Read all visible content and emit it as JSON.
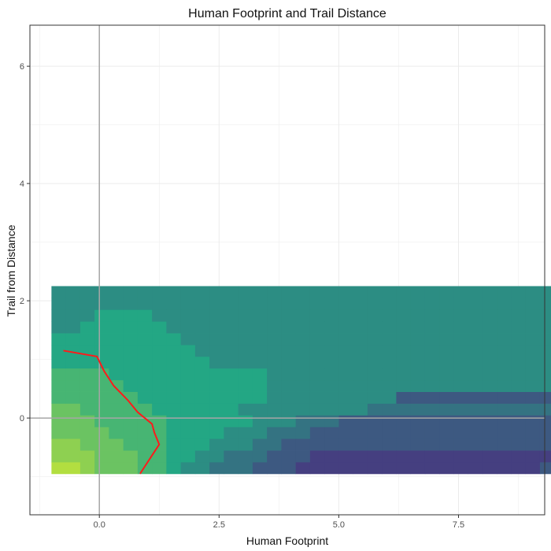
{
  "chart_data": {
    "type": "heatmap",
    "title": "Human Footprint and Trail Distance",
    "xlabel": "Human Footprint",
    "ylabel": "Trail from Distance",
    "xlim": [
      -1.45,
      9.3
    ],
    "ylim": [
      -1.65,
      6.7
    ],
    "x_ticks": [
      0.0,
      2.5,
      5.0,
      7.5
    ],
    "x_tick_labels": [
      "0.0",
      "2.5",
      "5.0",
      "7.5"
    ],
    "y_ticks": [
      0,
      2,
      4,
      6
    ],
    "y_tick_labels": [
      "0",
      "2",
      "4",
      "6"
    ],
    "grid": true,
    "legend": "none",
    "reference_lines": {
      "x": 0,
      "y": 0,
      "color": "#a6a6a6"
    },
    "bin_width": {
      "x": 0.3,
      "y": 0.2
    },
    "x_bin_start": -1.0,
    "y_bin_start": -0.95,
    "colors": {
      "low": "#453f80",
      "mid": "#23a784",
      "high": "#b2de40",
      "trend_line": "#ff1a1a",
      "panel_border": "#333333",
      "grid": "#ebebeb"
    },
    "rows": [
      {
        "y": -0.85,
        "values": [
          8,
          8,
          7,
          6,
          6,
          6,
          5,
          5,
          4,
          3,
          3,
          2,
          2,
          2,
          1,
          1,
          1,
          0,
          0,
          0,
          0,
          0,
          0,
          0,
          0,
          0,
          0,
          0,
          0,
          0,
          0,
          0,
          0,
          0,
          1
        ]
      },
      {
        "y": -0.65,
        "values": [
          7,
          7,
          7,
          6,
          6,
          6,
          5,
          5,
          4,
          4,
          3,
          3,
          2,
          2,
          2,
          1,
          1,
          1,
          0,
          0,
          0,
          0,
          0,
          0,
          0,
          0,
          0,
          0,
          0,
          0,
          0,
          0,
          0,
          0,
          0
        ]
      },
      {
        "y": -0.45,
        "values": [
          7,
          7,
          6,
          6,
          6,
          5,
          5,
          5,
          4,
          4,
          4,
          3,
          3,
          3,
          2,
          2,
          1,
          1,
          1,
          1,
          1,
          1,
          1,
          1,
          1,
          1,
          1,
          1,
          1,
          1,
          1,
          1,
          1,
          1,
          1
        ]
      },
      {
        "y": -0.25,
        "values": [
          6,
          6,
          6,
          6,
          5,
          5,
          5,
          5,
          4,
          4,
          4,
          4,
          3,
          3,
          3,
          2,
          2,
          2,
          1,
          1,
          1,
          1,
          1,
          1,
          1,
          1,
          1,
          1,
          1,
          1,
          1,
          1,
          1,
          1,
          1
        ]
      },
      {
        "y": -0.05,
        "values": [
          6,
          6,
          6,
          5,
          5,
          5,
          5,
          5,
          4,
          4,
          4,
          4,
          4,
          4,
          3,
          3,
          3,
          2,
          2,
          2,
          1,
          1,
          1,
          1,
          1,
          1,
          1,
          1,
          1,
          1,
          1,
          1,
          1,
          1,
          1
        ]
      },
      {
        "y": 0.15,
        "values": [
          6,
          6,
          5,
          5,
          5,
          5,
          5,
          4,
          4,
          4,
          4,
          4,
          4,
          3,
          3,
          3,
          3,
          3,
          3,
          3,
          3,
          3,
          2,
          2,
          2,
          2,
          2,
          2,
          2,
          2,
          2,
          2,
          2,
          2,
          2
        ]
      },
      {
        "y": 0.35,
        "values": [
          5,
          5,
          5,
          5,
          5,
          5,
          4,
          4,
          4,
          4,
          4,
          4,
          4,
          4,
          4,
          3,
          3,
          3,
          3,
          3,
          3,
          3,
          3,
          3,
          1,
          1,
          1,
          1,
          1,
          1,
          1,
          1,
          1,
          1,
          1
        ]
      },
      {
        "y": 0.55,
        "values": [
          5,
          5,
          5,
          5,
          5,
          4,
          4,
          4,
          4,
          4,
          4,
          4,
          4,
          4,
          4,
          3,
          3,
          3,
          3,
          3,
          3,
          3,
          3,
          3,
          3,
          3,
          3,
          3,
          3,
          3,
          3,
          3,
          3,
          3,
          3
        ]
      },
      {
        "y": 0.75,
        "values": [
          5,
          5,
          5,
          5,
          4,
          4,
          4,
          4,
          4,
          4,
          4,
          4,
          4,
          4,
          4,
          3,
          3,
          3,
          3,
          3,
          3,
          3,
          3,
          3,
          3,
          3,
          3,
          3,
          3,
          3,
          3,
          3,
          3,
          3,
          3
        ]
      },
      {
        "y": 0.95,
        "values": [
          4,
          4,
          4,
          4,
          4,
          4,
          4,
          4,
          4,
          4,
          4,
          3,
          3,
          3,
          3,
          3,
          3,
          3,
          3,
          3,
          3,
          3,
          3,
          3,
          3,
          3,
          3,
          3,
          3,
          3,
          3,
          3,
          3,
          3,
          3
        ]
      },
      {
        "y": 1.15,
        "values": [
          4,
          4,
          4,
          4,
          4,
          4,
          4,
          4,
          4,
          4,
          3,
          3,
          3,
          3,
          3,
          3,
          3,
          3,
          3,
          3,
          3,
          3,
          3,
          3,
          3,
          3,
          3,
          3,
          3,
          3,
          3,
          3,
          3,
          3,
          3
        ]
      },
      {
        "y": 1.35,
        "values": [
          4,
          4,
          4,
          4,
          4,
          4,
          4,
          4,
          4,
          3,
          3,
          3,
          3,
          3,
          3,
          3,
          3,
          3,
          3,
          3,
          3,
          3,
          3,
          3,
          3,
          3,
          3,
          3,
          3,
          3,
          3,
          3,
          3,
          3,
          3
        ]
      },
      {
        "y": 1.55,
        "values": [
          3,
          3,
          4,
          4,
          4,
          4,
          4,
          4,
          3,
          3,
          3,
          3,
          3,
          3,
          3,
          3,
          3,
          3,
          3,
          3,
          3,
          3,
          3,
          3,
          3,
          3,
          3,
          3,
          3,
          3,
          3,
          3,
          3,
          3,
          3
        ]
      },
      {
        "y": 1.75,
        "values": [
          3,
          3,
          3,
          4,
          4,
          4,
          4,
          3,
          3,
          3,
          3,
          3,
          3,
          3,
          3,
          3,
          3,
          3,
          3,
          3,
          3,
          3,
          3,
          3,
          3,
          3,
          3,
          3,
          3,
          3,
          3,
          3,
          3,
          3,
          3
        ]
      },
      {
        "y": 1.95,
        "values": [
          3,
          3,
          3,
          3,
          3,
          3,
          3,
          3,
          3,
          3,
          3,
          3,
          3,
          3,
          3,
          3,
          3,
          3,
          3,
          3,
          3,
          3,
          3,
          3,
          3,
          3,
          3,
          3,
          3,
          3,
          3,
          3,
          3,
          3,
          3
        ]
      },
      {
        "y": 2.15,
        "values": [
          3,
          3,
          3,
          3,
          3,
          3,
          3,
          3,
          3,
          3,
          3,
          3,
          3,
          3,
          3,
          3,
          3,
          3,
          3,
          3,
          3,
          3,
          3,
          3,
          3,
          3,
          3,
          3,
          3,
          3,
          3,
          3,
          3,
          3,
          3
        ]
      }
    ],
    "trend_line": {
      "x": [
        -0.75,
        -0.05,
        0.1,
        0.3,
        0.6,
        0.8,
        1.1,
        1.15,
        1.25,
        1.05,
        0.85
      ],
      "y": [
        1.15,
        1.05,
        0.8,
        0.55,
        0.3,
        0.1,
        -0.1,
        -0.25,
        -0.45,
        -0.7,
        -0.95
      ]
    }
  }
}
